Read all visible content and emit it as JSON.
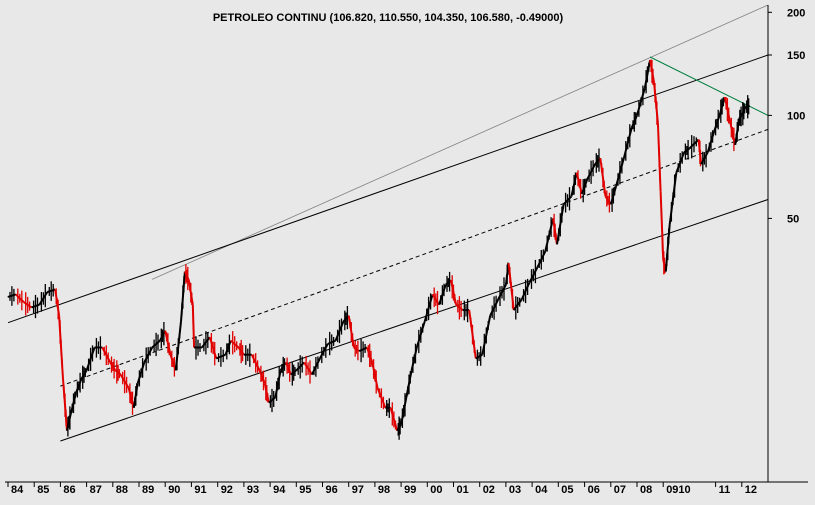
{
  "chart_data": {
    "type": "candlestick-line",
    "title": "PETROLEO CONTINU (106.820, 110.550, 104.350, 106.580, -0.49000)",
    "y_scale": "log",
    "ylim": [
      8.5,
      210
    ],
    "y_ticks": [
      50,
      100,
      150,
      200
    ],
    "y_tick_labels": [
      "50",
      "100",
      "150",
      "200"
    ],
    "x_range": [
      1984.0,
      2013.0
    ],
    "x_ticks": [
      {
        "label": "84",
        "x": 1984.0
      },
      {
        "label": "85",
        "x": 1985.0
      },
      {
        "label": "86",
        "x": 1986.0
      },
      {
        "label": "87",
        "x": 1987.0
      },
      {
        "label": "88",
        "x": 1988.0
      },
      {
        "label": "89",
        "x": 1989.0
      },
      {
        "label": "90",
        "x": 1990.0
      },
      {
        "label": "91",
        "x": 1991.0
      },
      {
        "label": "92",
        "x": 1992.0
      },
      {
        "label": "93",
        "x": 1993.0
      },
      {
        "label": "94",
        "x": 1994.0
      },
      {
        "label": "95",
        "x": 1995.0
      },
      {
        "label": "96",
        "x": 1996.0
      },
      {
        "label": "97",
        "x": 1997.0
      },
      {
        "label": "98",
        "x": 1998.0
      },
      {
        "label": "99",
        "x": 1999.0
      },
      {
        "label": "00",
        "x": 2000.0
      },
      {
        "label": "01",
        "x": 2001.0
      },
      {
        "label": "02",
        "x": 2002.0
      },
      {
        "label": "03",
        "x": 2003.0
      },
      {
        "label": "04",
        "x": 2004.0
      },
      {
        "label": "05",
        "x": 2005.0
      },
      {
        "label": "06",
        "x": 2006.0
      },
      {
        "label": "07",
        "x": 2007.0
      },
      {
        "label": "08",
        "x": 2008.0
      },
      {
        "label": "0910",
        "x": 2009.0
      },
      {
        "label": "11",
        "x": 2011.0
      },
      {
        "label": "12",
        "x": 2012.0
      }
    ],
    "series": [
      {
        "name": "PETROLEO CONTINU",
        "points": [
          [
            1984.0,
            29.5
          ],
          [
            1984.3,
            30.0
          ],
          [
            1984.6,
            28.5
          ],
          [
            1984.9,
            27.5
          ],
          [
            1985.2,
            28.0
          ],
          [
            1985.5,
            30.5
          ],
          [
            1985.8,
            31.0
          ],
          [
            1985.95,
            26.0
          ],
          [
            1986.1,
            17.0
          ],
          [
            1986.25,
            12.0
          ],
          [
            1986.4,
            13.5
          ],
          [
            1986.6,
            15.5
          ],
          [
            1986.8,
            17.0
          ],
          [
            1987.0,
            18.0
          ],
          [
            1987.3,
            21.0
          ],
          [
            1987.6,
            21.0
          ],
          [
            1987.9,
            19.0
          ],
          [
            1988.1,
            18.0
          ],
          [
            1988.3,
            17.5
          ],
          [
            1988.6,
            16.0
          ],
          [
            1988.8,
            14.0
          ],
          [
            1988.95,
            16.5
          ],
          [
            1989.2,
            19.0
          ],
          [
            1989.5,
            21.0
          ],
          [
            1989.8,
            22.0
          ],
          [
            1990.0,
            23.5
          ],
          [
            1990.2,
            20.0
          ],
          [
            1990.4,
            18.0
          ],
          [
            1990.6,
            25.0
          ],
          [
            1990.75,
            35.0
          ],
          [
            1990.9,
            33.0
          ],
          [
            1991.05,
            28.0
          ],
          [
            1991.1,
            21.0
          ],
          [
            1991.4,
            21.0
          ],
          [
            1991.7,
            22.5
          ],
          [
            1991.95,
            19.5
          ],
          [
            1992.3,
            20.0
          ],
          [
            1992.5,
            22.0
          ],
          [
            1992.8,
            21.0
          ],
          [
            1993.0,
            20.0
          ],
          [
            1993.3,
            20.0
          ],
          [
            1993.6,
            18.0
          ],
          [
            1993.8,
            16.5
          ],
          [
            1993.95,
            14.5
          ],
          [
            1994.2,
            15.0
          ],
          [
            1994.4,
            18.0
          ],
          [
            1994.6,
            19.0
          ],
          [
            1994.8,
            17.5
          ],
          [
            1995.0,
            18.0
          ],
          [
            1995.3,
            19.0
          ],
          [
            1995.6,
            17.5
          ],
          [
            1995.9,
            19.5
          ],
          [
            1996.2,
            21.5
          ],
          [
            1996.5,
            22.0
          ],
          [
            1996.8,
            25.0
          ],
          [
            1997.0,
            26.0
          ],
          [
            1997.2,
            21.0
          ],
          [
            1997.4,
            20.5
          ],
          [
            1997.7,
            21.0
          ],
          [
            1997.9,
            19.0
          ],
          [
            1998.1,
            16.0
          ],
          [
            1998.4,
            14.0
          ],
          [
            1998.6,
            14.0
          ],
          [
            1998.85,
            12.0
          ],
          [
            1999.0,
            12.5
          ],
          [
            1999.2,
            15.0
          ],
          [
            1999.4,
            18.0
          ],
          [
            1999.6,
            21.0
          ],
          [
            1999.9,
            25.0
          ],
          [
            2000.2,
            30.0
          ],
          [
            2000.45,
            28.0
          ],
          [
            2000.7,
            32.0
          ],
          [
            2000.9,
            33.0
          ],
          [
            2001.1,
            28.0
          ],
          [
            2001.35,
            27.0
          ],
          [
            2001.6,
            27.0
          ],
          [
            2001.85,
            19.5
          ],
          [
            2002.1,
            20.0
          ],
          [
            2002.4,
            26.0
          ],
          [
            2002.7,
            29.0
          ],
          [
            2003.0,
            32.0
          ],
          [
            2003.1,
            37.0
          ],
          [
            2003.3,
            27.0
          ],
          [
            2003.6,
            29.0
          ],
          [
            2003.9,
            32.5
          ],
          [
            2004.2,
            36.0
          ],
          [
            2004.5,
            40.0
          ],
          [
            2004.8,
            50.0
          ],
          [
            2004.95,
            42.0
          ],
          [
            2005.2,
            55.0
          ],
          [
            2005.5,
            58.0
          ],
          [
            2005.7,
            68.0
          ],
          [
            2005.9,
            59.0
          ],
          [
            2006.1,
            65.0
          ],
          [
            2006.4,
            72.0
          ],
          [
            2006.6,
            75.0
          ],
          [
            2006.8,
            58.0
          ],
          [
            2007.0,
            55.0
          ],
          [
            2007.2,
            62.0
          ],
          [
            2007.5,
            75.0
          ],
          [
            2007.8,
            92.0
          ],
          [
            2008.0,
            100.0
          ],
          [
            2008.3,
            120.0
          ],
          [
            2008.5,
            145.0
          ],
          [
            2008.65,
            125.0
          ],
          [
            2008.8,
            95.0
          ],
          [
            2008.9,
            60.0
          ],
          [
            2009.0,
            38.0
          ],
          [
            2009.1,
            35.0
          ],
          [
            2009.25,
            48.0
          ],
          [
            2009.5,
            68.0
          ],
          [
            2009.8,
            78.0
          ],
          [
            2010.0,
            80.0
          ],
          [
            2010.35,
            85.0
          ],
          [
            2010.45,
            72.0
          ],
          [
            2010.7,
            78.0
          ],
          [
            2010.95,
            90.0
          ],
          [
            2011.15,
            100.0
          ],
          [
            2011.35,
            113.0
          ],
          [
            2011.55,
            96.0
          ],
          [
            2011.75,
            82.0
          ],
          [
            2011.9,
            98.0
          ],
          [
            2012.0,
            100.0
          ],
          [
            2012.15,
            106.0
          ],
          [
            2012.3,
            106.58
          ]
        ]
      }
    ],
    "trend_lines": [
      {
        "name": "outer-upper-channel",
        "color": "#808080",
        "from": [
          1989.5,
          33.2
        ],
        "to": [
          2013.0,
          210.0
        ]
      },
      {
        "name": "channel-upper",
        "color": "#000000",
        "from": [
          1984.0,
          24.8
        ],
        "to": [
          2013.0,
          150.0
        ]
      },
      {
        "name": "channel-mid-dashed",
        "color": "#000000",
        "from": [
          1986.0,
          16.2
        ],
        "to": [
          2013.0,
          91.0
        ]
      },
      {
        "name": "channel-lower",
        "color": "#000000",
        "from": [
          1986.0,
          11.2
        ],
        "to": [
          2013.0,
          56.8
        ]
      },
      {
        "name": "green-resistance",
        "color": "#008040",
        "from": [
          2008.5,
          148.0
        ],
        "to": [
          2013.0,
          100.0
        ]
      }
    ]
  },
  "colors": {
    "background": "#e8e8e8",
    "up": "#000000",
    "down": "#e00000"
  }
}
